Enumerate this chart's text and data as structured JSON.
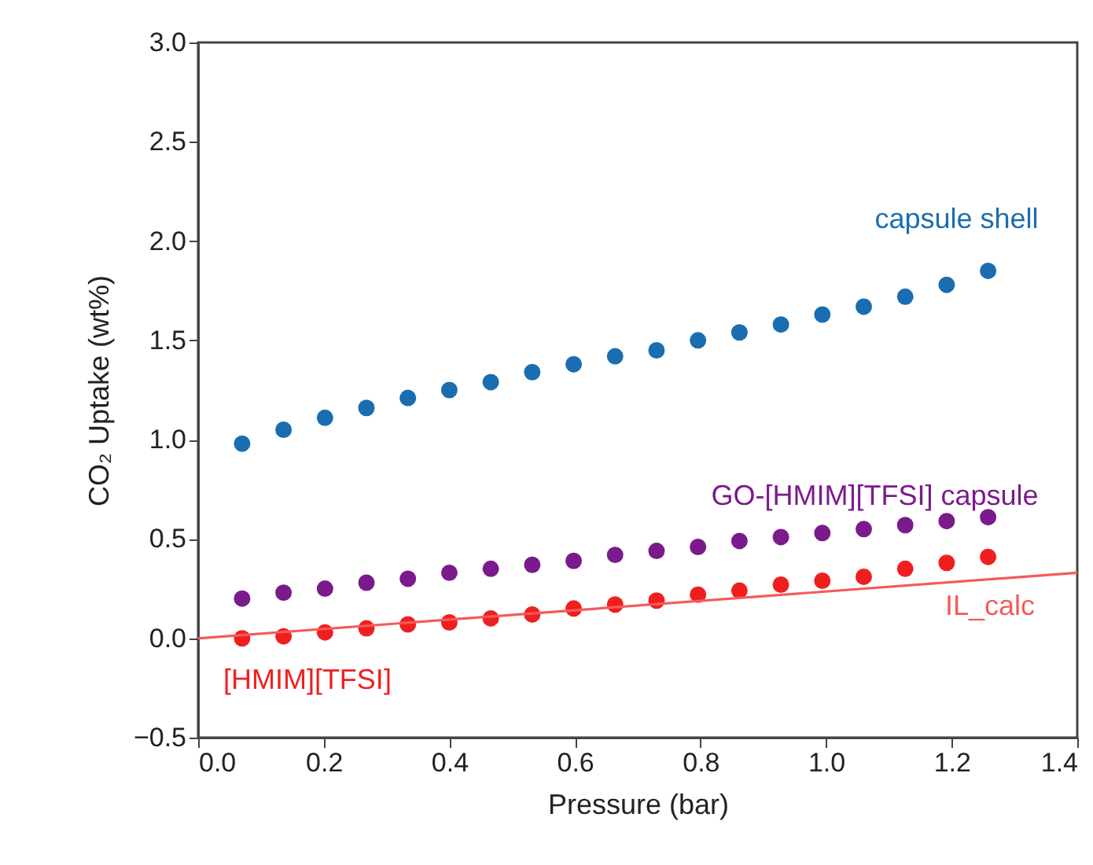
{
  "chart_data": {
    "type": "scatter",
    "xlabel": "Pressure (bar)",
    "ylabel": "CO₂ Uptake (wt%)",
    "x": [
      0.07,
      0.136,
      0.202,
      0.268,
      0.334,
      0.4,
      0.466,
      0.532,
      0.598,
      0.664,
      0.73,
      0.796,
      0.862,
      0.928,
      0.994,
      1.06,
      1.126,
      1.192,
      1.258
    ],
    "series": [
      {
        "name": "capsule shell",
        "color": "#1a6db0",
        "values": [
          0.98,
          1.05,
          1.11,
          1.16,
          1.21,
          1.25,
          1.29,
          1.34,
          1.38,
          1.42,
          1.45,
          1.5,
          1.54,
          1.58,
          1.63,
          1.67,
          1.72,
          1.78,
          1.85
        ]
      },
      {
        "name": "GO-[HMIM][TFSI] capsule",
        "color": "#7b1a8c",
        "values": [
          0.2,
          0.23,
          0.25,
          0.28,
          0.3,
          0.33,
          0.35,
          0.37,
          0.39,
          0.42,
          0.44,
          0.46,
          0.49,
          0.51,
          0.53,
          0.55,
          0.57,
          0.59,
          0.61
        ]
      },
      {
        "name": "[HMIM][TFSI]",
        "color": "#f01f1f",
        "values": [
          0.0,
          0.01,
          0.03,
          0.05,
          0.07,
          0.08,
          0.1,
          0.12,
          0.15,
          0.17,
          0.19,
          0.22,
          0.24,
          0.27,
          0.29,
          0.31,
          0.35,
          0.38,
          0.41
        ]
      },
      {
        "name": "IL_calc",
        "type": "line",
        "color": "#f55a5a",
        "marker": "none",
        "line_style": "solid",
        "x": [
          0.0,
          1.4
        ],
        "values": [
          0.0,
          0.33
        ]
      }
    ],
    "xlim": [
      0.0,
      1.4
    ],
    "xticks": [
      {
        "value": 0.0,
        "label": "0.0"
      },
      0.2,
      0.4,
      0.6,
      0.8,
      {
        "value": 1.0,
        "label": "1.0"
      },
      1.2,
      1.4
    ],
    "ylim": [
      -0.5,
      3.0
    ],
    "yticks": [
      -0.5,
      {
        "value": 0.0,
        "label": "0.0"
      },
      0.5,
      {
        "value": 1.0,
        "label": "1.0"
      },
      1.5,
      {
        "value": 2.0,
        "label": "2.0"
      },
      2.5,
      {
        "value": 3.0,
        "label": "3.0"
      }
    ],
    "marker": "circle",
    "grid": false,
    "legend": false
  }
}
